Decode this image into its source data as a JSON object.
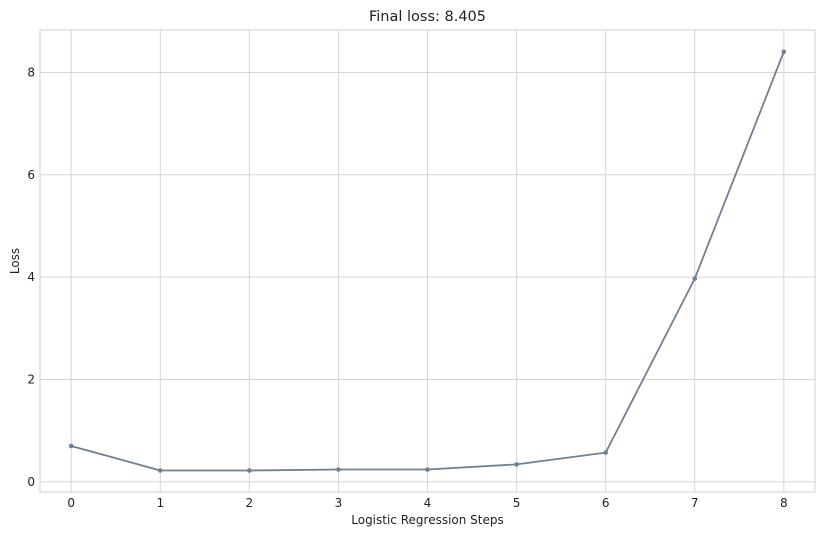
{
  "chart_data": {
    "type": "line",
    "title": "Final loss: 8.405",
    "xlabel": "Logistic Regression Steps",
    "ylabel": "Loss",
    "x": [
      0,
      1,
      2,
      3,
      4,
      5,
      6,
      7,
      8
    ],
    "xticks": [
      "0",
      "1",
      "2",
      "3",
      "4",
      "5",
      "6",
      "7",
      "8"
    ],
    "yticks": [
      "0",
      "2",
      "4",
      "6",
      "8"
    ],
    "xlim": [
      -0.35,
      8.35
    ],
    "ylim": [
      -0.2,
      8.83
    ],
    "grid": true,
    "series": [
      {
        "values": [
          0.7,
          0.22,
          0.22,
          0.24,
          0.24,
          0.34,
          0.57,
          3.97,
          8.405
        ],
        "color": "#708090",
        "marker": "circle"
      }
    ]
  }
}
